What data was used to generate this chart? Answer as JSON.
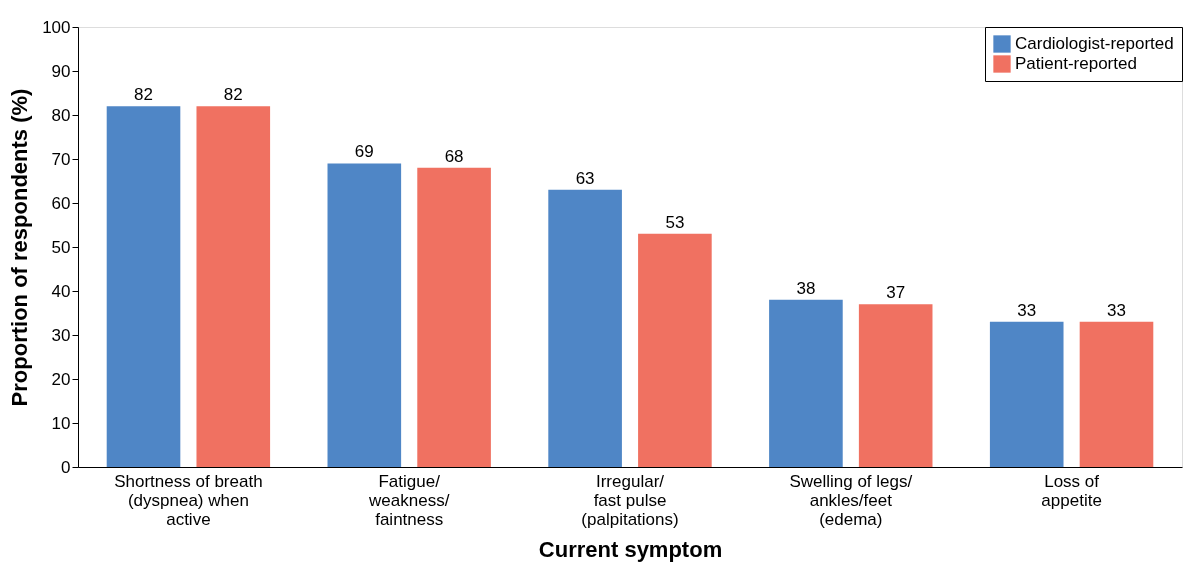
{
  "chart_data": {
    "type": "bar",
    "xlabel": "Current symptom",
    "ylabel": "Proportion of respondents (%)",
    "categories": [
      "Shortness of breath\n(dyspnea) when\nactive",
      "Fatigue/\nweakness/\nfaintness",
      "Irregular/\nfast pulse\n(palpitations)",
      "Swelling of legs/\nankles/feet\n(edema)",
      "Loss of\nappetite"
    ],
    "series": [
      {
        "name": "Cardiologist-reported",
        "color": "#4f86c6",
        "values": [
          82,
          69,
          63,
          38,
          33
        ]
      },
      {
        "name": "Patient-reported",
        "color": "#f07161",
        "values": [
          82,
          68,
          53,
          37,
          33
        ]
      }
    ],
    "ylim": [
      0,
      100
    ],
    "yticks": [
      0,
      10,
      20,
      30,
      40,
      50,
      60,
      70,
      80,
      90,
      100
    ],
    "data_labels": true,
    "grid": false,
    "legend": "top right"
  }
}
